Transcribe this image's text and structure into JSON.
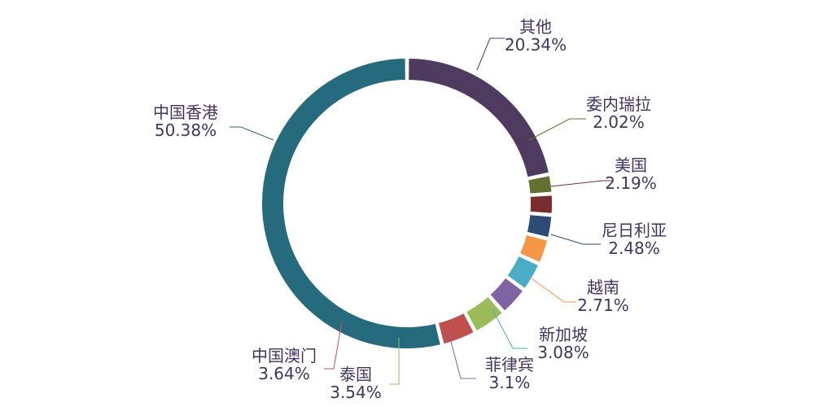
{
  "chart_data": {
    "type": "pie",
    "variant": "donut",
    "title": "",
    "slices": [
      {
        "name": "其他",
        "value": 20.34,
        "label": "20.34%",
        "color": "#4e3b5f",
        "label_side": "right"
      },
      {
        "name": "委内瑞拉",
        "value": 2.02,
        "label": "2.02%",
        "color": "#627131",
        "label_side": "right"
      },
      {
        "name": "美国",
        "value": 2.19,
        "label": "2.19%",
        "color": "#792c2d",
        "label_side": "right"
      },
      {
        "name": "尼日利亚",
        "value": 2.48,
        "label": "2.48%",
        "color": "#2d4b75",
        "label_side": "right"
      },
      {
        "name": "越南",
        "value": 2.71,
        "label": "2.71%",
        "color": "#f79646",
        "label_side": "right"
      },
      {
        "name": "新加坡",
        "value": 3.08,
        "label": "3.08%",
        "color": "#4bacc6",
        "label_side": "right"
      },
      {
        "name": "菲律宾",
        "value": 3.1,
        "label": "3.1%",
        "color": "#8064a2",
        "label_side": "right"
      },
      {
        "name": "泰国",
        "value": 3.54,
        "label": "3.54%",
        "color": "#9bbb59",
        "label_side": "left"
      },
      {
        "name": "中国澳门",
        "value": 3.64,
        "label": "3.64%",
        "color": "#c0504d",
        "label_side": "left"
      },
      {
        "name": "中国香港",
        "value": 50.38,
        "label": "50.38%",
        "color": "#4f81bd",
        "label_side": "left"
      }
    ],
    "start": "top",
    "direction": "clockwise",
    "legend": "none"
  },
  "colors": {
    "hong_kong_main": "#266a7e",
    "label_text": "#44345e"
  }
}
